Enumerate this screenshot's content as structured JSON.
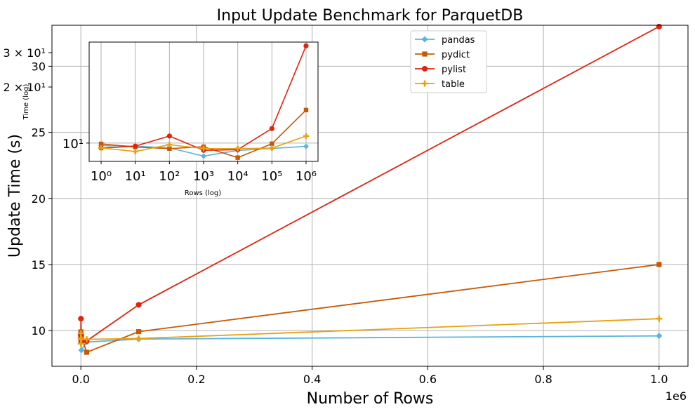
{
  "chart_data": [
    {
      "type": "line",
      "title": "Input Update Benchmark for ParquetDB",
      "xlabel": "Number of Rows",
      "ylabel": "Update Time (s)",
      "x_offset_label": "1e6",
      "x": [
        1,
        10,
        100,
        1000,
        10000,
        100000,
        1000000
      ],
      "xlim": [
        -50000,
        1050000
      ],
      "ylim": [
        7.3,
        33.1
      ],
      "xticks": [
        0.0,
        0.2,
        0.4,
        0.6,
        0.8,
        1.0
      ],
      "xtick_labels": [
        "0.0",
        "0.2",
        "0.4",
        "0.6",
        "0.8",
        "1.0"
      ],
      "yticks": [
        10,
        15,
        20,
        25,
        30
      ],
      "ytick_labels": [
        "10",
        "15",
        "20",
        "25",
        "30"
      ],
      "yticks_minor_labels": [
        {
          "value": 30.0,
          "label": "3 × 10¹"
        },
        {
          "value": 20.0,
          "label": "2 × 10¹"
        }
      ],
      "grid": true,
      "legend_position": "top-right",
      "series": [
        {
          "name": "pandas",
          "color": "#5ab4dc",
          "marker": "diamond",
          "values": [
            9.7,
            9.63,
            9.42,
            8.52,
            9.13,
            9.36,
            9.6
          ]
        },
        {
          "name": "pydict",
          "color": "#c45a08",
          "marker": "square",
          "values": [
            9.9,
            9.52,
            9.34,
            9.56,
            8.36,
            9.92,
            15.0
          ]
        },
        {
          "name": "pylist",
          "color": "#e0230f",
          "marker": "circle",
          "values": [
            9.4,
            9.63,
            10.9,
            9.15,
            9.22,
            11.95,
            33.0
          ]
        },
        {
          "name": "table",
          "color": "#e8a010",
          "marker": "plus",
          "values": [
            9.42,
            9.01,
            9.8,
            9.35,
            9.34,
            9.4,
            10.9
          ]
        }
      ]
    },
    {
      "type": "line",
      "role": "inset",
      "xlabel": "Rows (log)",
      "ylabel": "Time (log)",
      "xscale": "log",
      "yscale": "log",
      "x": [
        1,
        10,
        100,
        1000,
        10000,
        100000,
        1000000
      ],
      "xtick_labels": [
        "10⁰",
        "10¹",
        "10²",
        "10³",
        "10⁴",
        "10⁵",
        "10⁶"
      ],
      "ytick_label": "10¹",
      "grid": true
    }
  ]
}
